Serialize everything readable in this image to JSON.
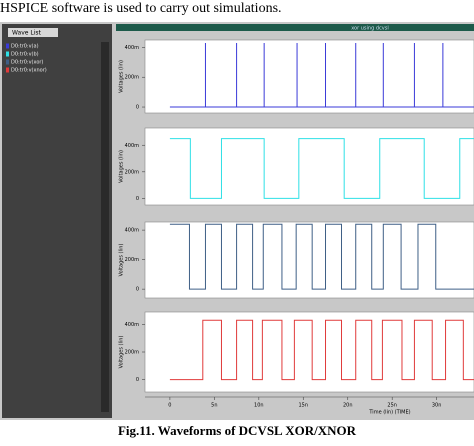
{
  "heading_text": "HSPICE software is used to carry out simulations.",
  "window_title": "xor using dcvsl",
  "wave_list_tab": "Wave List",
  "caption": "Fig.11. Waveforms of DCVSL XOR/XNOR",
  "chart_data": [
    {
      "type": "line",
      "ylabel": "Voltages (lin)",
      "x": [
        0,
        4,
        4,
        4,
        7.5,
        7.5,
        7.5,
        10.6,
        10.6,
        10.6,
        14.3,
        14.3,
        14.3,
        17.5,
        17.5,
        17.5,
        20.9,
        20.9,
        20.9,
        24,
        24,
        24,
        27.5,
        27.5,
        27.5,
        30.7,
        30.7,
        30.7,
        34.2
      ],
      "series": [
        {
          "name": "D0:tr0:v(a)",
          "color": "#3a3ad8",
          "values": [
            0,
            0,
            0.43,
            0,
            0,
            0.43,
            0,
            0,
            0.43,
            0,
            0,
            0.43,
            0,
            0,
            0.43,
            0,
            0,
            0.43,
            0,
            0,
            0.43,
            0,
            0,
            0.43,
            0,
            0,
            0.43,
            0,
            0
          ]
        }
      ],
      "xlim": [
        -2.8,
        34.2
      ],
      "ylim": [
        -0.04,
        0.45
      ],
      "yticks": [
        {
          "value": 0,
          "label": "0"
        },
        {
          "value": 0.2,
          "label": "200m"
        },
        {
          "value": 0.4,
          "label": "400m"
        }
      ]
    },
    {
      "type": "line",
      "ylabel": "Voltages (lin)",
      "x": [
        0,
        2.3,
        2.3,
        5.8,
        5.8,
        10.6,
        10.6,
        14.5,
        14.5,
        19.6,
        19.6,
        23.6,
        23.6,
        28.6,
        28.6,
        32.6,
        32.6,
        34.2
      ],
      "series": [
        {
          "name": "D0:tr0:v(b)",
          "color": "#2ee0e6",
          "values": [
            0.45,
            0.45,
            0,
            0,
            0.45,
            0.45,
            0,
            0,
            0.45,
            0.45,
            0,
            0,
            0.45,
            0.45,
            0,
            0,
            0.45,
            0.45
          ]
        }
      ],
      "xlim": [
        -2.8,
        34.2
      ],
      "ylim": [
        -0.05,
        0.53
      ],
      "yticks": [
        {
          "value": 0,
          "label": "0"
        },
        {
          "value": 0.2,
          "label": "200m"
        },
        {
          "value": 0.4,
          "label": "400m"
        }
      ]
    },
    {
      "type": "line",
      "ylabel": "Voltages (lin)",
      "x": [
        0,
        2.2,
        2.2,
        4,
        4,
        5.8,
        5.8,
        7.5,
        7.5,
        9.3,
        9.3,
        10.5,
        10.5,
        12.6,
        12.6,
        14.2,
        14.2,
        16,
        16,
        17.5,
        17.5,
        19.3,
        19.3,
        20.9,
        20.9,
        22.7,
        22.7,
        24,
        24,
        26,
        26,
        27.9,
        27.9,
        29.9,
        29.9,
        34.2
      ],
      "series": [
        {
          "name": "D0:tr0:v(xor)",
          "color": "#3f5f86",
          "values": [
            0.44,
            0.44,
            0,
            0,
            0.44,
            0.44,
            0,
            0,
            0.44,
            0.44,
            0,
            0,
            0.44,
            0.44,
            0,
            0,
            0.44,
            0.44,
            0,
            0,
            0.44,
            0.44,
            0,
            0,
            0.44,
            0.44,
            0,
            0,
            0.44,
            0.44,
            0,
            0,
            0.44,
            0.44,
            0,
            0
          ]
        }
      ],
      "xlim": [
        -2.8,
        34.2
      ],
      "ylim": [
        -0.06,
        0.455
      ],
      "yticks": [
        {
          "value": 0,
          "label": "0"
        },
        {
          "value": 0.2,
          "label": "200m"
        },
        {
          "value": 0.4,
          "label": "400m"
        }
      ]
    },
    {
      "type": "line",
      "ylabel": "Voltages (lin)",
      "xlabel": "Time (lin) (TIME)",
      "x": [
        0,
        3.7,
        3.7,
        5.8,
        5.8,
        7.5,
        7.5,
        9.3,
        9.3,
        10.4,
        10.4,
        12.6,
        12.6,
        14,
        14,
        16,
        16,
        17.5,
        17.5,
        19.3,
        19.3,
        20.9,
        20.9,
        22.7,
        22.7,
        23.9,
        23.9,
        26.1,
        26.1,
        27.5,
        27.5,
        29.5,
        29.5,
        31,
        31,
        33,
        33,
        34.2
      ],
      "series": [
        {
          "name": "D0:tr0:v(xnor)",
          "color": "#e03a3a",
          "values": [
            0,
            0,
            0.43,
            0.43,
            0,
            0,
            0.43,
            0.43,
            0,
            0,
            0.43,
            0.43,
            0,
            0,
            0.43,
            0.43,
            0,
            0,
            0.43,
            0.43,
            0,
            0,
            0.43,
            0.43,
            0,
            0,
            0.43,
            0.43,
            0,
            0,
            0.43,
            0.43,
            0,
            0,
            0.43,
            0.43,
            0,
            0
          ]
        }
      ],
      "xlim": [
        -2.8,
        34.2
      ],
      "ylim": [
        -0.09,
        0.49
      ],
      "yticks": [
        {
          "value": 0,
          "label": "0"
        },
        {
          "value": 0.2,
          "label": "200m"
        },
        {
          "value": 0.4,
          "label": "400m"
        }
      ],
      "xticks": [
        {
          "value": 0,
          "label": "0"
        },
        {
          "value": 5,
          "label": "5n"
        },
        {
          "value": 10,
          "label": "10n"
        },
        {
          "value": 15,
          "label": "15n"
        },
        {
          "value": 20,
          "label": "20n"
        },
        {
          "value": 25,
          "label": "25n"
        },
        {
          "value": 30,
          "label": "30n"
        }
      ]
    }
  ]
}
